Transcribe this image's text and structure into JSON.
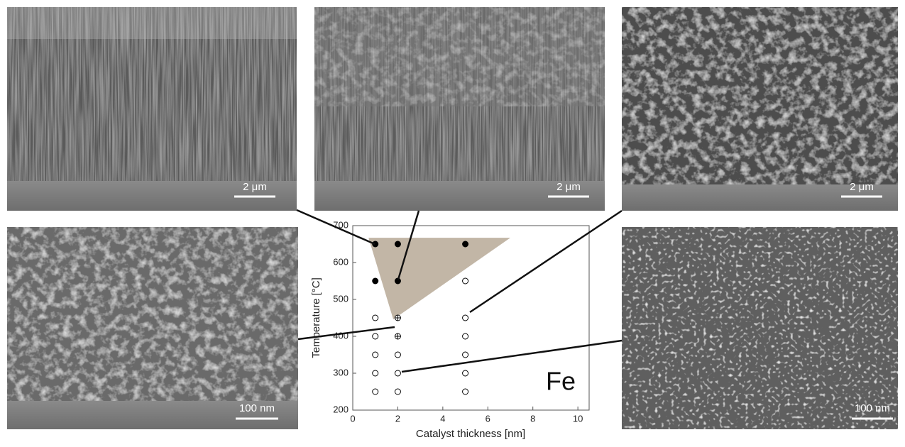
{
  "chart_data": {
    "type": "scatter",
    "xlabel": "Catalyst thickness [nm]",
    "ylabel": "Temperature [°C]",
    "annotation": "Fe",
    "xlim": [
      0,
      10.5
    ],
    "ylim": [
      200,
      700
    ],
    "xticks": [
      0,
      2,
      4,
      6,
      8,
      10
    ],
    "yticks": [
      200,
      300,
      400,
      500,
      600,
      700
    ],
    "shaded_region": {
      "color": "#c2b6a6",
      "x": [
        0.7,
        7,
        1.8
      ],
      "y": [
        667,
        667,
        446
      ]
    },
    "series": [
      {
        "marker": "filled",
        "color": "#000000",
        "x": [
          1,
          2,
          5,
          1,
          2
        ],
        "values": [
          650,
          650,
          650,
          550,
          550
        ]
      },
      {
        "marker": "open",
        "color": "#000000",
        "x": [
          1,
          1,
          1,
          1,
          1,
          2,
          2,
          2,
          5,
          5,
          5,
          5,
          5,
          5
        ],
        "values": [
          450,
          400,
          350,
          300,
          250,
          350,
          300,
          250,
          550,
          450,
          400,
          350,
          300,
          250
        ]
      },
      {
        "marker": "crossed",
        "color": "#000000",
        "x": [
          2,
          2
        ],
        "values": [
          450,
          400
        ]
      }
    ]
  },
  "images": [
    {
      "scale_label": "2 μm"
    },
    {
      "scale_label": "2 μm"
    },
    {
      "scale_label": "2 μm"
    },
    {
      "scale_label": "100 nm"
    },
    {
      "scale_label": "100 nm"
    }
  ]
}
